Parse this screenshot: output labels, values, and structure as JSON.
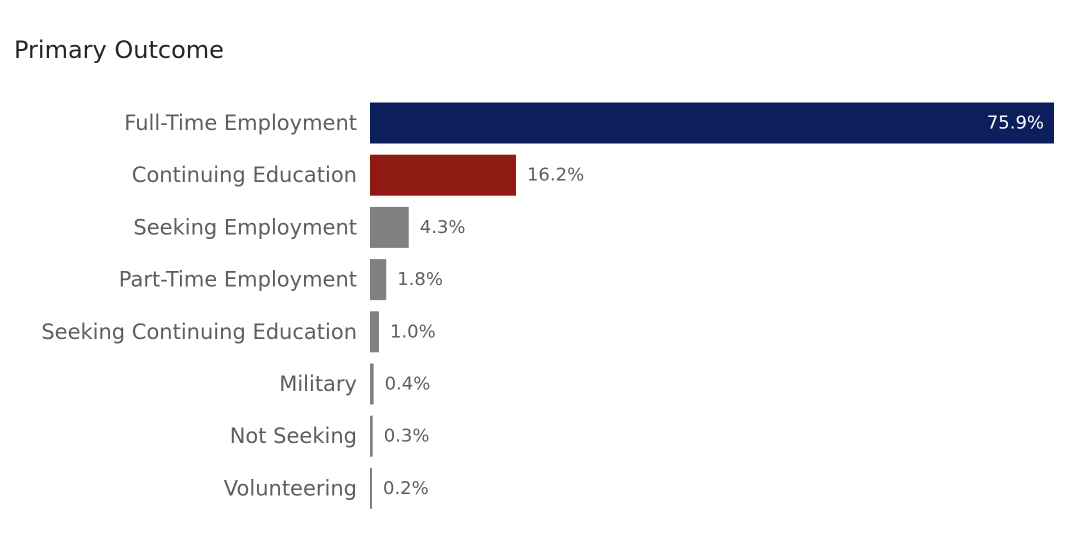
{
  "chart_data": {
    "type": "bar",
    "orientation": "horizontal",
    "title": "Primary Outcome",
    "xlabel": "",
    "ylabel": "",
    "xlim": [
      0,
      75.9
    ],
    "grid": false,
    "legend": "none",
    "value_format": "percent",
    "categories": [
      "Full-Time Employment",
      "Continuing Education",
      "Seeking Employment",
      "Part-Time Employment",
      "Seeking Continuing Education",
      "Military",
      "Not Seeking",
      "Volunteering"
    ],
    "values": [
      75.9,
      16.2,
      4.3,
      1.8,
      1.0,
      0.4,
      0.3,
      0.2
    ],
    "value_labels": [
      "75.9%",
      "16.2%",
      "4.3%",
      "1.8%",
      "1.0%",
      "0.4%",
      "0.3%",
      "0.2%"
    ],
    "colors": [
      "#0c1f5c",
      "#8f1a12",
      "#808080",
      "#808080",
      "#808080",
      "#808080",
      "#808080",
      "#808080"
    ],
    "label_inside_color": "#ffffff",
    "label_outside_color": "#605e5c"
  }
}
